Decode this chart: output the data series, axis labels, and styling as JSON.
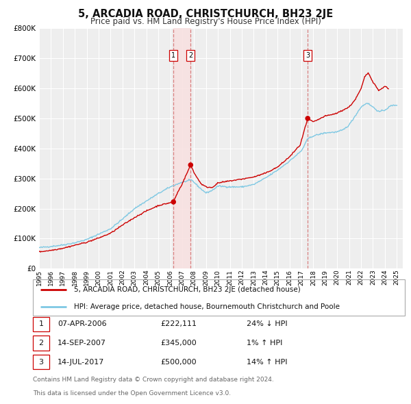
{
  "title": "5, ARCADIA ROAD, CHRISTCHURCH, BH23 2JE",
  "subtitle": "Price paid vs. HM Land Registry's House Price Index (HPI)",
  "ylim": [
    0,
    800000
  ],
  "xlim_start": 1995.0,
  "xlim_end": 2025.5,
  "ytick_labels": [
    "£0",
    "£100K",
    "£200K",
    "£300K",
    "£400K",
    "£500K",
    "£600K",
    "£700K",
    "£800K"
  ],
  "ytick_values": [
    0,
    100000,
    200000,
    300000,
    400000,
    500000,
    600000,
    700000,
    800000
  ],
  "xtick_labels": [
    "1995",
    "1996",
    "1997",
    "1998",
    "1999",
    "2000",
    "2001",
    "2002",
    "2003",
    "2004",
    "2005",
    "2006",
    "2007",
    "2008",
    "2009",
    "2010",
    "2011",
    "2012",
    "2013",
    "2014",
    "2015",
    "2016",
    "2017",
    "2018",
    "2019",
    "2020",
    "2021",
    "2022",
    "2023",
    "2024",
    "2025"
  ],
  "hpi_color": "#7ec8e3",
  "sale_color": "#cc0000",
  "bg_color": "#eeeeee",
  "grid_color": "#ffffff",
  "annotation_line_color": "#d88080",
  "annotation_fill_color": "#f8e0e0",
  "transactions": [
    {
      "num": 1,
      "date_x": 2006.27,
      "price": 222111,
      "pct": "24%",
      "dir": "↓",
      "date_str": "07-APR-2006"
    },
    {
      "num": 2,
      "date_x": 2007.71,
      "price": 345000,
      "pct": "1%",
      "dir": "↑",
      "date_str": "14-SEP-2007"
    },
    {
      "num": 3,
      "date_x": 2017.53,
      "price": 500000,
      "pct": "14%",
      "dir": "↑",
      "date_str": "14-JUL-2017"
    }
  ],
  "footnote1": "Contains HM Land Registry data © Crown copyright and database right 2024.",
  "footnote2": "This data is licensed under the Open Government Licence v3.0.",
  "legend_line1": "5, ARCADIA ROAD, CHRISTCHURCH, BH23 2JE (detached house)",
  "legend_line2": "HPI: Average price, detached house, Bournemouth Christchurch and Poole",
  "hpi_anchors": [
    [
      1995.0,
      70000
    ],
    [
      1996.0,
      74000
    ],
    [
      1997.0,
      79000
    ],
    [
      1998.0,
      86000
    ],
    [
      1999.0,
      97000
    ],
    [
      2000.0,
      115000
    ],
    [
      2001.0,
      133000
    ],
    [
      2002.0,
      165000
    ],
    [
      2003.0,
      200000
    ],
    [
      2004.0,
      225000
    ],
    [
      2005.0,
      250000
    ],
    [
      2006.0,
      272000
    ],
    [
      2007.0,
      288000
    ],
    [
      2007.8,
      295000
    ],
    [
      2008.5,
      268000
    ],
    [
      2009.0,
      252000
    ],
    [
      2009.5,
      260000
    ],
    [
      2010.0,
      275000
    ],
    [
      2011.0,
      272000
    ],
    [
      2012.0,
      272000
    ],
    [
      2013.0,
      280000
    ],
    [
      2014.0,
      302000
    ],
    [
      2015.0,
      328000
    ],
    [
      2016.0,
      358000
    ],
    [
      2017.0,
      392000
    ],
    [
      2017.53,
      432000
    ],
    [
      2018.0,
      442000
    ],
    [
      2019.0,
      452000
    ],
    [
      2020.0,
      455000
    ],
    [
      2020.5,
      462000
    ],
    [
      2021.0,
      478000
    ],
    [
      2021.5,
      508000
    ],
    [
      2022.0,
      538000
    ],
    [
      2022.5,
      552000
    ],
    [
      2023.0,
      538000
    ],
    [
      2023.5,
      522000
    ],
    [
      2024.0,
      528000
    ],
    [
      2024.5,
      542000
    ],
    [
      2025.0,
      545000
    ]
  ],
  "sale_anchors": [
    [
      1995.0,
      56000
    ],
    [
      1996.0,
      61000
    ],
    [
      1997.0,
      68000
    ],
    [
      1998.0,
      78000
    ],
    [
      1999.0,
      88000
    ],
    [
      2000.0,
      102000
    ],
    [
      2001.0,
      118000
    ],
    [
      2002.0,
      145000
    ],
    [
      2003.0,
      170000
    ],
    [
      2004.0,
      192000
    ],
    [
      2005.0,
      210000
    ],
    [
      2006.27,
      222111
    ],
    [
      2006.6,
      252000
    ],
    [
      2007.0,
      282000
    ],
    [
      2007.71,
      345000
    ],
    [
      2008.1,
      312000
    ],
    [
      2008.6,
      282000
    ],
    [
      2009.0,
      272000
    ],
    [
      2009.5,
      270000
    ],
    [
      2010.0,
      285000
    ],
    [
      2011.0,
      292000
    ],
    [
      2012.0,
      298000
    ],
    [
      2013.0,
      305000
    ],
    [
      2014.0,
      318000
    ],
    [
      2015.0,
      338000
    ],
    [
      2016.0,
      372000
    ],
    [
      2016.9,
      412000
    ],
    [
      2017.53,
      500000
    ],
    [
      2018.0,
      488000
    ],
    [
      2019.0,
      508000
    ],
    [
      2019.5,
      512000
    ],
    [
      2020.0,
      518000
    ],
    [
      2020.5,
      528000
    ],
    [
      2021.0,
      538000
    ],
    [
      2021.5,
      562000
    ],
    [
      2022.0,
      598000
    ],
    [
      2022.3,
      638000
    ],
    [
      2022.6,
      652000
    ],
    [
      2023.0,
      622000
    ],
    [
      2023.5,
      592000
    ],
    [
      2024.0,
      608000
    ],
    [
      2024.3,
      598000
    ]
  ]
}
